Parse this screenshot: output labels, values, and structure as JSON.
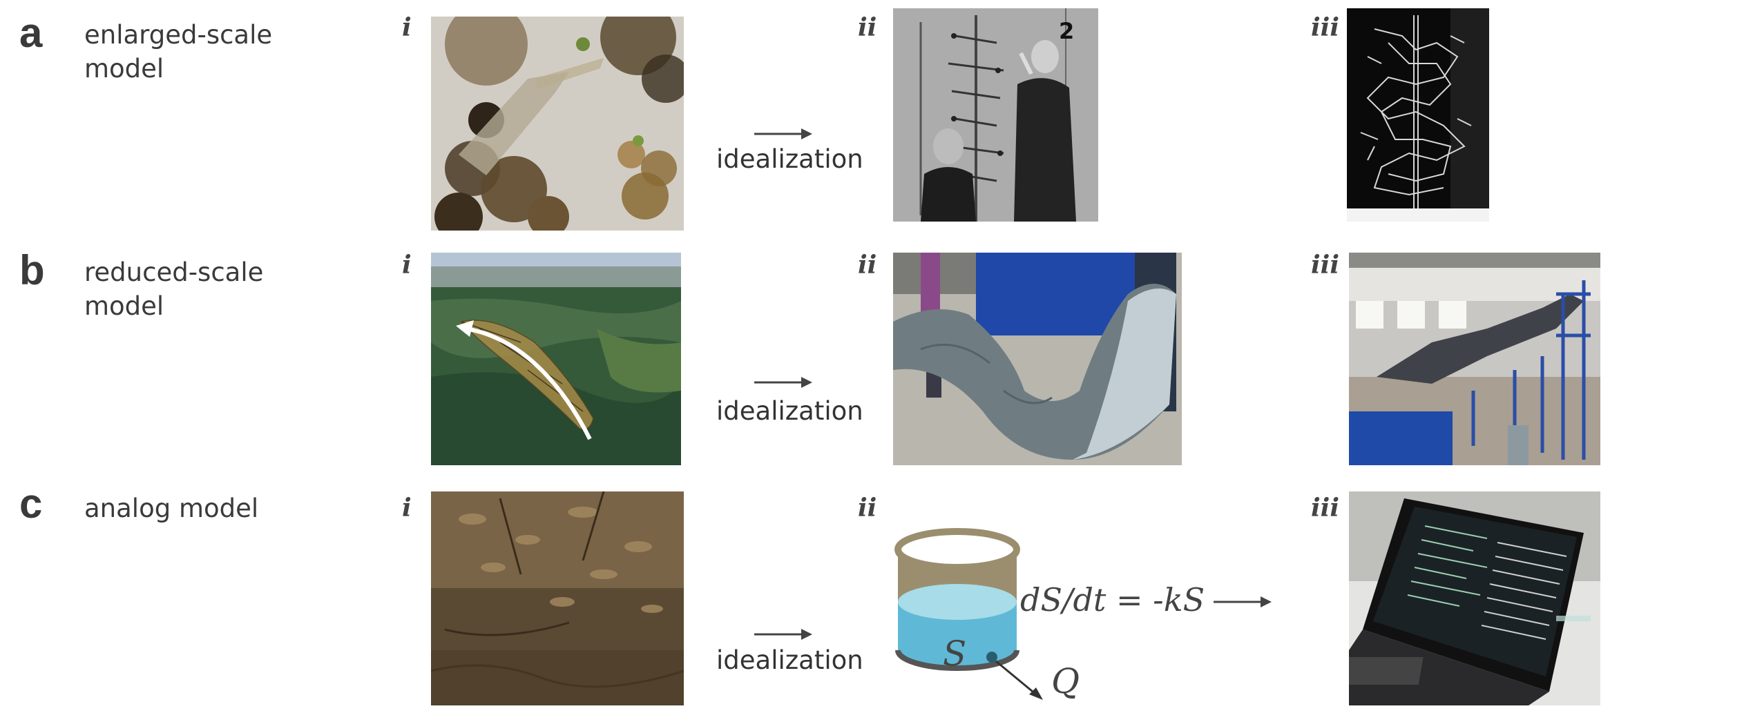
{
  "rows": [
    {
      "letter": "a",
      "title": "enlarged-scale model"
    },
    {
      "letter": "b",
      "title": "reduced-scale model"
    },
    {
      "letter": "c",
      "title": "analog model"
    }
  ],
  "panel_labels": {
    "i": "i",
    "ii": "ii",
    "iii": "iii"
  },
  "arrow_label": "idealization",
  "equation": "dS/dt = -kS",
  "storage_symbol": "S",
  "outflow_symbol": "Q",
  "photo_numeral": "2",
  "colors": {
    "text": "#3a3a3a",
    "arrow": "#444444",
    "bucket_body": "#9b8e6e",
    "bucket_water": "#5fb9d6"
  }
}
